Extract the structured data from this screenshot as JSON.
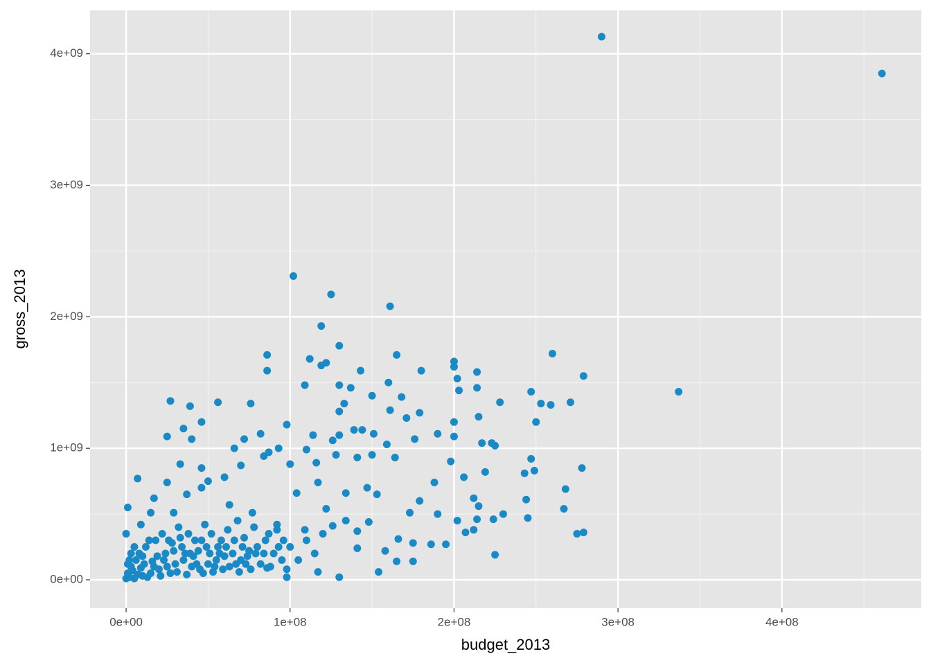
{
  "chart_data": {
    "type": "scatter",
    "x_label": "budget_2013",
    "y_label": "gross_2013",
    "color": "#1a8ac6",
    "grid": true,
    "xlim": [
      -22000000.0,
      485000000.0
    ],
    "ylim": [
      -216000000.0,
      4330000000.0
    ],
    "xticks": [
      {
        "value": 0,
        "label": "0e+00"
      },
      {
        "value": 100000000.0,
        "label": "1e+08"
      },
      {
        "value": 200000000.0,
        "label": "2e+08"
      },
      {
        "value": 300000000.0,
        "label": "3e+08"
      },
      {
        "value": 400000000.0,
        "label": "4e+08"
      }
    ],
    "yticks": [
      {
        "value": 0,
        "label": "0e+00"
      },
      {
        "value": 1000000000.0,
        "label": "1e+09"
      },
      {
        "value": 2000000000.0,
        "label": "2e+09"
      },
      {
        "value": 3000000000.0,
        "label": "3e+09"
      },
      {
        "value": 4000000000.0,
        "label": "4e+09"
      }
    ],
    "x": [
      290000000.0,
      461000000.0,
      337000000.0,
      102000000.0,
      125000000.0,
      161000000.0,
      119000000.0,
      130000000.0,
      86000000.0,
      86000000.0,
      112000000.0,
      119000000.0,
      122000000.0,
      165000000.0,
      260000000.0,
      279000000.0,
      200000000.0,
      200000000.0,
      202000000.0,
      203000000.0,
      214000000.0,
      180000000.0,
      160000000.0,
      143000000.0,
      109000000.0,
      130000000.0,
      137000000.0,
      247000000.0,
      214000000.0,
      168000000.0,
      150000000.0,
      133000000.0,
      27000000.0,
      39000000.0,
      56000000.0,
      76000000.0,
      228000000.0,
      253000000.0,
      259000000.0,
      271000000.0,
      215000000.0,
      250000000.0,
      130000000.0,
      161000000.0,
      171000000.0,
      179000000.0,
      200000000.0,
      98000000.0,
      46000000.0,
      35000000.0,
      25000000.0,
      40000000.0,
      72000000.0,
      82000000.0,
      114000000.0,
      139000000.0,
      144000000.0,
      151000000.0,
      176000000.0,
      190000000.0,
      200000000.0,
      217000000.0,
      223000000.0,
      225000000.0,
      159000000.0,
      130000000.0,
      126000000.0,
      110000000.0,
      93000000.0,
      87000000.0,
      66000000.0,
      33000000.0,
      46000000.0,
      25000000.0,
      7000000.0,
      1000000.0,
      206000000.0,
      219000000.0,
      243000000.0,
      249000000.0,
      278000000.0,
      268000000.0,
      267000000.0,
      244000000.0,
      245000000.0,
      247000000.0,
      224000000.0,
      230000000.0,
      275000000.0,
      279000000.0,
      225000000.0,
      207000000.0,
      212000000.0,
      195000000.0,
      186000000.0,
      175000000.0,
      154000000.0,
      165000000.0,
      175000000.0,
      130000000.0,
      198000000.0,
      188000000.0,
      179000000.0,
      173000000.0,
      202000000.0,
      214000000.0,
      212000000.0,
      215000000.0,
      190000000.0,
      166000000.0,
      158000000.0,
      141000000.0,
      147000000.0,
      153000000.0,
      164000000.0,
      150000000.0,
      141000000.0,
      128000000.0,
      116000000.0,
      100000000.0,
      84000000.0,
      70000000.0,
      60000000.0,
      50000000.0,
      104000000.0,
      117000000.0,
      134000000.0,
      122000000.0,
      134000000.0,
      148000000.0,
      141000000.0,
      126000000.0,
      109000000.0,
      92000000.0,
      77000000.0,
      63000000.0,
      46000000.0,
      37000000.0,
      29000000.0,
      15000000.0,
      17000000.0,
      9000000.0,
      0.0,
      117000000.0,
      98000000.0,
      86000000.0,
      2000000.0,
      5000000.0,
      10000000.0,
      15000000.0,
      20000000.0,
      25000000.0,
      30000000.0,
      35000000.0,
      40000000.0,
      45000000.0,
      50000000.0,
      55000000.0,
      60000000.0,
      65000000.0,
      70000000.0,
      75000000.0,
      80000000.0,
      85000000.0,
      90000000.0,
      95000000.0,
      100000000.0,
      3000000.0,
      6000000.0,
      8000000.0,
      12000000.0,
      18000000.0,
      22000000.0,
      28000000.0,
      32000000.0,
      38000000.0,
      42000000.0,
      48000000.0,
      52000000.0,
      58000000.0,
      62000000.0,
      68000000.0,
      72000000.0,
      78000000.0,
      82000000.0,
      88000000.0,
      92000000.0,
      98000000.0,
      105000000.0,
      110000000.0,
      115000000.0,
      120000000.0,
      1000000.0,
      4000000.0,
      7000000.0,
      9000000.0,
      11000000.0,
      13000000.0,
      16000000.0,
      19000000.0,
      21000000.0,
      24000000.0,
      27000000.0,
      29000000.0,
      31000000.0,
      34000000.0,
      37000000.0,
      39000000.0,
      41000000.0,
      44000000.0,
      47000000.0,
      49000000.0,
      53000000.0,
      56000000.0,
      59000000.0,
      63000000.0,
      66000000.0,
      69000000.0,
      73000000.0,
      76000000.0,
      2000000.0,
      0.0,
      1000000.0,
      3000000.0,
      5000000.0,
      10000000.0,
      14000000.0,
      17000000.0,
      23000000.0,
      26000000.0,
      33000000.0,
      36000000.0,
      43000000.0,
      46000000.0,
      51000000.0,
      54000000.0,
      57000000.0,
      61000000.0,
      67000000.0,
      71000000.0,
      74000000.0,
      79000000.0,
      84000000.0,
      87000000.0,
      93000000.0,
      96000000.0
    ],
    "values": [
      4130000000.0,
      3850000000.0,
      1430000000.0,
      2310000000.0,
      2170000000.0,
      2080000000.0,
      1930000000.0,
      1780000000.0,
      1710000000.0,
      1590000000.0,
      1680000000.0,
      1630000000.0,
      1650000000.0,
      1710000000.0,
      1720000000.0,
      1550000000.0,
      1660000000.0,
      1620000000.0,
      1530000000.0,
      1440000000.0,
      1580000000.0,
      1590000000.0,
      1500000000.0,
      1590000000.0,
      1480000000.0,
      1480000000.0,
      1460000000.0,
      1430000000.0,
      1460000000.0,
      1390000000.0,
      1400000000.0,
      1340000000.0,
      1360000000.0,
      1320000000.0,
      1350000000.0,
      1340000000.0,
      1350000000.0,
      1340000000.0,
      1330000000.0,
      1350000000.0,
      1240000000.0,
      1200000000.0,
      1280000000.0,
      1290000000.0,
      1230000000.0,
      1270000000.0,
      1200000000.0,
      1180000000.0,
      1200000000.0,
      1150000000.0,
      1090000000.0,
      1070000000.0,
      1070000000.0,
      1110000000.0,
      1100000000.0,
      1140000000.0,
      1140000000.0,
      1110000000.0,
      1070000000.0,
      1110000000.0,
      1090000000.0,
      1040000000.0,
      1040000000.0,
      1020000000.0,
      1030000000.0,
      1100000000.0,
      1060000000.0,
      990000000.0,
      1000000000.0,
      970000000.0,
      1000000000.0,
      880000000.0,
      850000000.0,
      740000000.0,
      770000000.0,
      550000000.0,
      780000000.0,
      820000000.0,
      810000000.0,
      830000000.0,
      850000000.0,
      690000000.0,
      540000000.0,
      610000000.0,
      470000000.0,
      920000000.0,
      460000000.0,
      500000000.0,
      350000000.0,
      360000000.0,
      190000000.0,
      360000000.0,
      380000000.0,
      270000000.0,
      270000000.0,
      280000000.0,
      60000000.0,
      140000000.0,
      140000000.0,
      20000000.0,
      900000000.0,
      740000000.0,
      600000000.0,
      510000000.0,
      450000000.0,
      460000000.0,
      620000000.0,
      560000000.0,
      500000000.0,
      310000000.0,
      220000000.0,
      240000000.0,
      700000000.0,
      650000000.0,
      930000000.0,
      950000000.0,
      930000000.0,
      950000000.0,
      890000000.0,
      880000000.0,
      940000000.0,
      870000000.0,
      780000000.0,
      750000000.0,
      660000000.0,
      740000000.0,
      660000000.0,
      540000000.0,
      450000000.0,
      440000000.0,
      370000000.0,
      410000000.0,
      380000000.0,
      420000000.0,
      510000000.0,
      570000000.0,
      700000000.0,
      650000000.0,
      510000000.0,
      510000000.0,
      620000000.0,
      420000000.0,
      350000000.0,
      60000000.0,
      20000000.0,
      90000000.0,
      20000000.0,
      10000000.0,
      30000000.0,
      50000000.0,
      80000000.0,
      100000000.0,
      120000000.0,
      150000000.0,
      100000000.0,
      80000000.0,
      120000000.0,
      150000000.0,
      180000000.0,
      200000000.0,
      150000000.0,
      220000000.0,
      250000000.0,
      300000000.0,
      200000000.0,
      150000000.0,
      250000000.0,
      100000000.0,
      150000000.0,
      200000000.0,
      250000000.0,
      300000000.0,
      350000000.0,
      280000000.0,
      400000000.0,
      350000000.0,
      300000000.0,
      420000000.0,
      350000000.0,
      300000000.0,
      380000000.0,
      450000000.0,
      320000000.0,
      400000000.0,
      120000000.0,
      100000000.0,
      380000000.0,
      80000000.0,
      150000000.0,
      300000000.0,
      200000000.0,
      350000000.0,
      50000000.0,
      70000000.0,
      40000000.0,
      90000000.0,
      120000000.0,
      20000000.0,
      140000000.0,
      180000000.0,
      30000000.0,
      200000000.0,
      50000000.0,
      220000000.0,
      60000000.0,
      250000000.0,
      40000000.0,
      200000000.0,
      180000000.0,
      220000000.0,
      50000000.0,
      250000000.0,
      60000000.0,
      250000000.0,
      80000000.0,
      100000000.0,
      300000000.0,
      60000000.0,
      120000000.0,
      80000000.0,
      150000000.0,
      10000000.0,
      120000000.0,
      200000000.0,
      250000000.0,
      180000000.0,
      300000000.0,
      100000000.0,
      150000000.0,
      300000000.0,
      320000000.0,
      200000000.0,
      120000000.0,
      300000000.0,
      200000000.0,
      100000000.0,
      200000000.0,
      250000000.0,
      120000000.0,
      250000000.0,
      180000000.0,
      200000000.0,
      200000000.0,
      350000000.0,
      250000000.0,
      300000000.0
    ]
  }
}
